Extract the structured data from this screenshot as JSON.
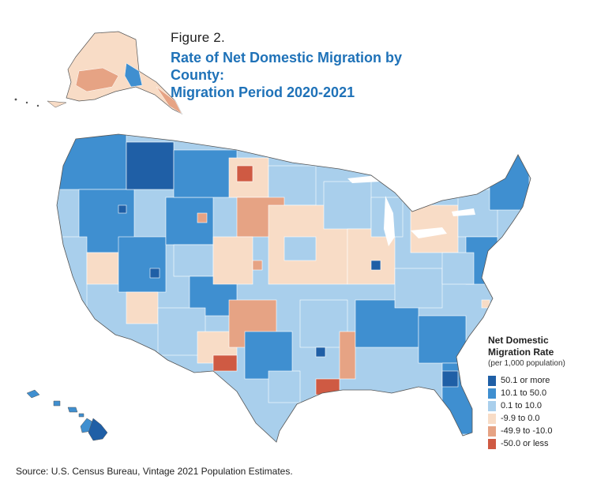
{
  "figure": {
    "label": "Figure 2.",
    "title_line1": "Rate of Net Domestic Migration by County:",
    "title_line2": "Migration Period 2020-2021",
    "source": "Source: U.S. Census Bureau, Vintage 2021 Population Estimates."
  },
  "legend": {
    "title_line1": "Net Domestic",
    "title_line2": "Migration Rate",
    "subtitle": "(per 1,000 population)",
    "classes": [
      {
        "label": "50.1 or more",
        "color": "#1f5fa6"
      },
      {
        "label": "10.1 to 50.0",
        "color": "#3f8fd0"
      },
      {
        "label": "0.1 to 10.0",
        "color": "#a9cfec"
      },
      {
        "label": "-9.9 to 0.0",
        "color": "#f8dcc6"
      },
      {
        "label": "-49.9 to -10.0",
        "color": "#e6a384"
      },
      {
        "label": "-50.0 or less",
        "color": "#cf5a43"
      }
    ]
  },
  "map": {
    "regions": [
      "Contiguous United States",
      "Alaska",
      "Hawaii"
    ],
    "border_color": "#ffffff"
  }
}
